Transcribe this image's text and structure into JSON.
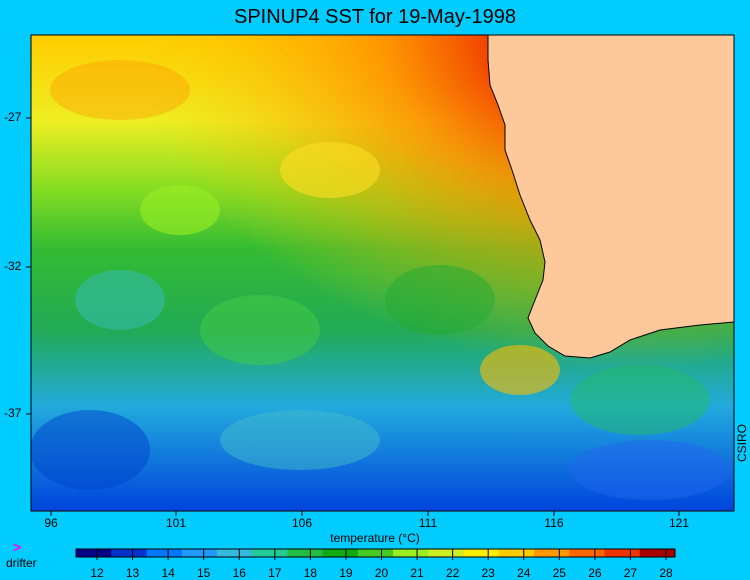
{
  "title": "SPINUP4 SST for 19-May-1998",
  "map": {
    "x_axis_ticks": [
      "96",
      "101",
      "106",
      "111",
      "116",
      "121"
    ],
    "y_axis_ticks": [
      "-27",
      "-32",
      "-37"
    ],
    "side_label": "CSIRO",
    "land_color": "#fec99a",
    "background_color": "#00ccff"
  },
  "colorbar": {
    "title": "temperature (°C)",
    "ticks": [
      "12",
      "13",
      "14",
      "15",
      "16",
      "17",
      "18",
      "19",
      "20",
      "21",
      "22",
      "23",
      "24",
      "25",
      "26",
      "27",
      "28"
    ],
    "colors": [
      "#000088",
      "#0033cc",
      "#0077ff",
      "#2299ff",
      "#33bbdd",
      "#22cc99",
      "#22bb44",
      "#11aa11",
      "#44cc22",
      "#99ee22",
      "#ccee22",
      "#ffee00",
      "#ffcc00",
      "#ff9900",
      "#ff6600",
      "#ee3300",
      "#aa0000"
    ]
  },
  "legend": {
    "symbol": ">",
    "label": "drifter",
    "symbol_color": "#ff00ff"
  }
}
